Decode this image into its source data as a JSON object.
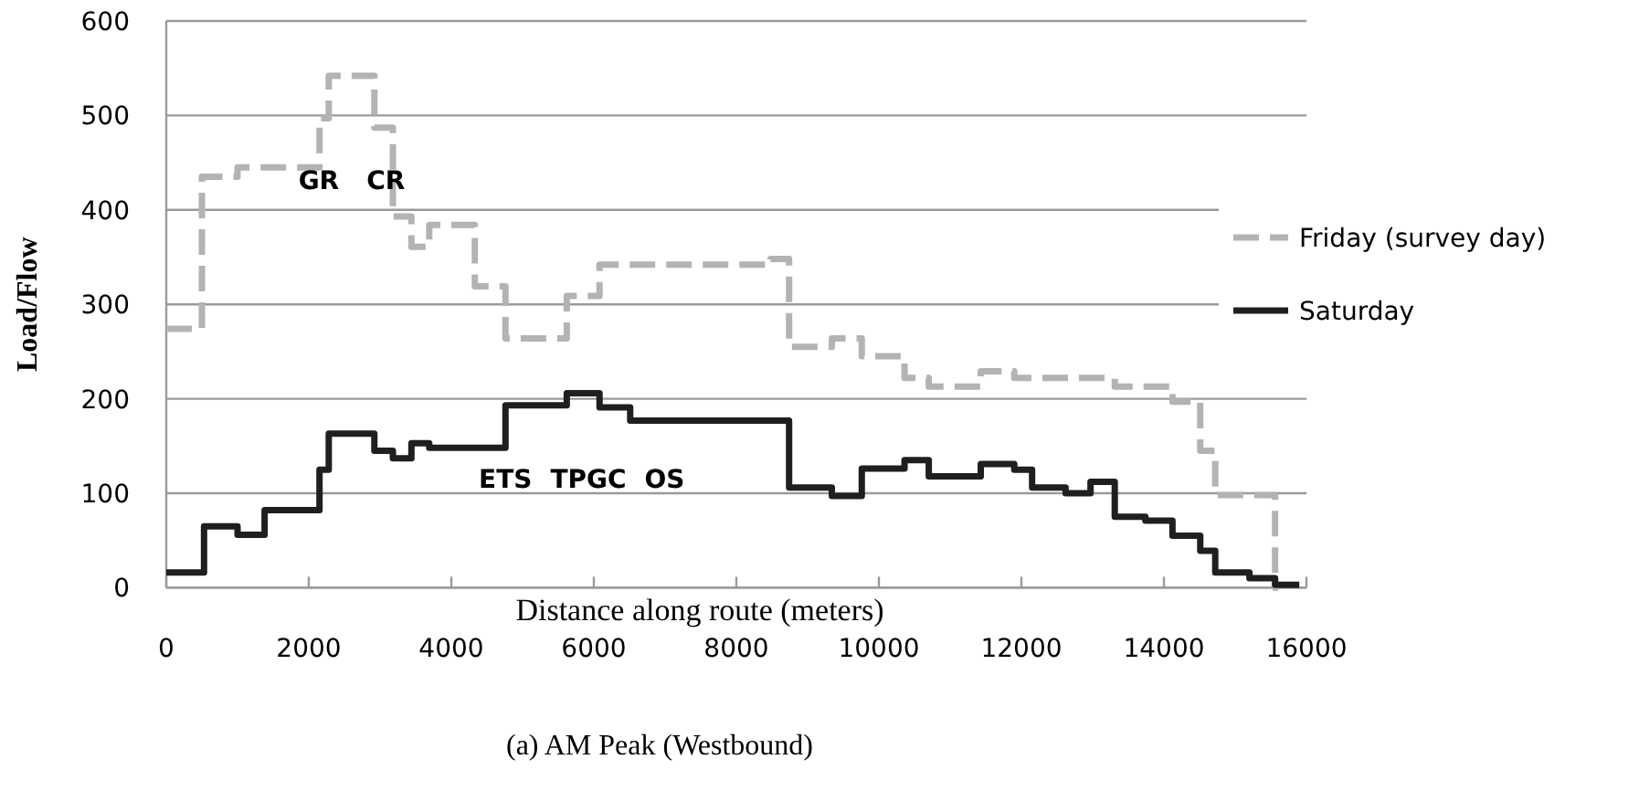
{
  "chart_data": {
    "type": "step",
    "title": "(a) AM Peak  (Westbound)",
    "xlabel": "Distance along route (meters)",
    "ylabel": "Load/Flow",
    "xlim": [
      0,
      16000
    ],
    "xticks": [
      0,
      2000,
      4000,
      6000,
      8000,
      10000,
      12000,
      14000,
      16000
    ],
    "ylim": [
      0,
      600
    ],
    "yticks": [
      0,
      100,
      200,
      300,
      400,
      500,
      600
    ],
    "grid": "y",
    "legend": "right",
    "series": [
      {
        "name": "Friday (survey day)",
        "color": "#b3b3b3",
        "line_style": "dashed",
        "x": [
          0,
          500,
          1000,
          2150,
          2280,
          2920,
          3180,
          3440,
          3690,
          4330,
          4760,
          5620,
          6080,
          8480,
          8740,
          9340,
          9760,
          10360,
          10700,
          11430,
          11900,
          13310,
          14120,
          14510,
          14720,
          15560,
          15600
        ],
        "values": [
          274,
          435,
          445,
          497,
          542,
          487,
          393,
          361,
          384,
          319,
          264,
          309,
          342,
          348,
          255,
          264,
          245,
          222,
          213,
          229,
          222,
          213,
          197,
          145,
          98,
          0,
          0
        ]
      },
      {
        "name": "Saturday",
        "color": "#1f1f1f",
        "line_style": "solid",
        "x": [
          0,
          530,
          1000,
          1380,
          2150,
          2280,
          2920,
          3180,
          3440,
          3690,
          4760,
          5620,
          6080,
          6510,
          8740,
          9340,
          9760,
          10360,
          10700,
          11430,
          11900,
          12150,
          12620,
          12970,
          13310,
          13740,
          14120,
          14510,
          14720,
          15200,
          15560,
          15900
        ],
        "values": [
          16,
          65,
          56,
          82,
          125,
          163,
          145,
          137,
          153,
          148,
          193,
          206,
          191,
          177,
          106,
          97,
          126,
          135,
          118,
          131,
          125,
          106,
          100,
          112,
          75,
          71,
          55,
          39,
          16,
          10,
          3,
          3
        ]
      }
    ],
    "annotations": [
      {
        "text": "GR",
        "x": 2140,
        "y": 432
      },
      {
        "text": "CR",
        "x": 3080,
        "y": 432
      },
      "ETS",
      "TPGC",
      "OS"
    ]
  }
}
